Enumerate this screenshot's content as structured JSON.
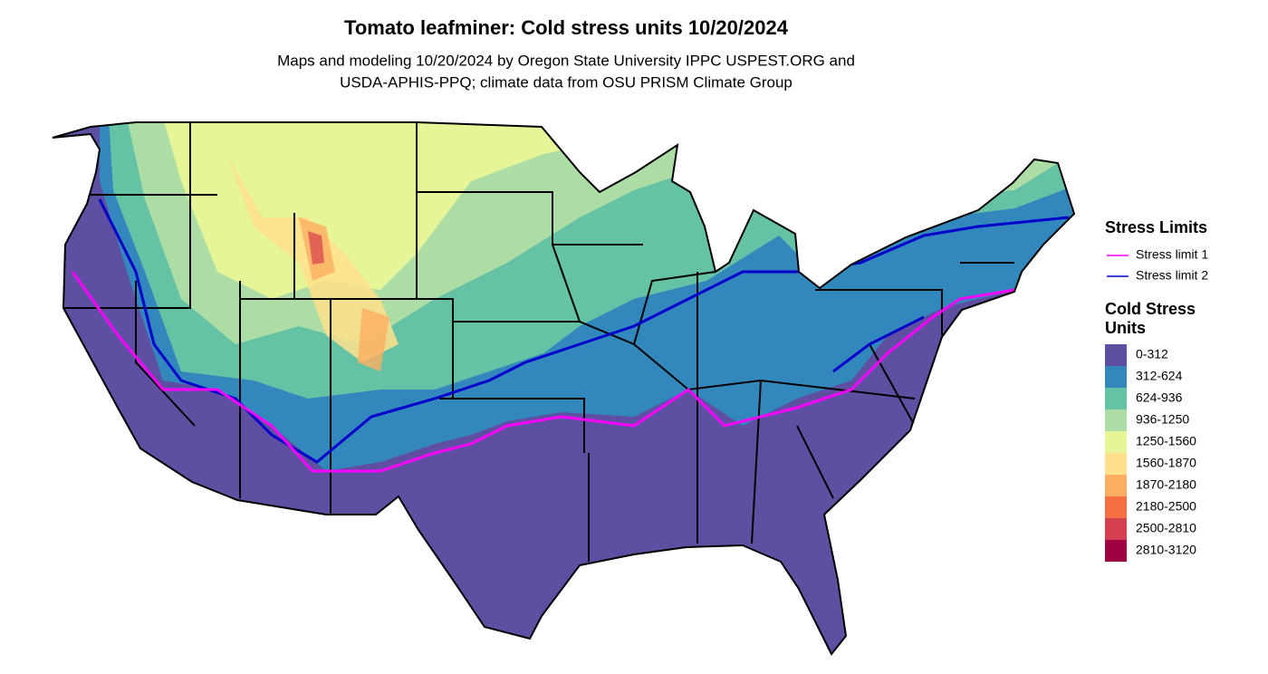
{
  "title": "Tomato leafminer: Cold stress units 10/20/2024",
  "subtitle": [
    "Maps and modeling 10/20/2024 by Oregon State University IPPC USPEST.ORG and",
    "USDA-APHIS-PPQ; climate data from OSU PRISM Climate Group"
  ],
  "stress_limits": {
    "title": "Stress Limits",
    "items": [
      {
        "label": "Stress limit 1",
        "color": "#ff00ff"
      },
      {
        "label": "Stress limit 2",
        "color": "#0000cd"
      }
    ]
  },
  "cold_stress_units": {
    "title": [
      "Cold Stress",
      "Units"
    ],
    "items": [
      {
        "label": "0-312",
        "color": "#5e4fa2"
      },
      {
        "label": "312-624",
        "color": "#3288bd"
      },
      {
        "label": "624-936",
        "color": "#66c2a5"
      },
      {
        "label": "936-1250",
        "color": "#abdda4"
      },
      {
        "label": "1250-1560",
        "color": "#e6f598"
      },
      {
        "label": "1560-1870",
        "color": "#fee08b"
      },
      {
        "label": "1870-2180",
        "color": "#fdae61"
      },
      {
        "label": "2180-2500",
        "color": "#f46d43"
      },
      {
        "label": "2500-2810",
        "color": "#d53e4f"
      },
      {
        "label": "2810-3120",
        "color": "#9e0142"
      }
    ]
  }
}
